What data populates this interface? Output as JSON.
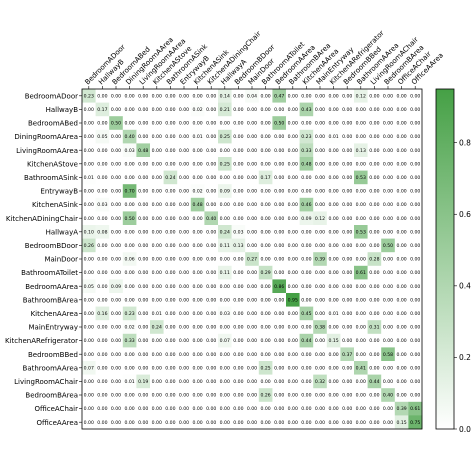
{
  "chart_data": {
    "type": "heatmap",
    "x_labels": [
      "BedroomADoor",
      "HallwayB",
      "BedroomABed",
      "DiningRoomAArea",
      "LivingRoomAArea",
      "KitchenAStove",
      "BathroomASink",
      "EntrywayB",
      "KitchenASink",
      "KitchenADiningChair",
      "HallwayA",
      "BedroomBDoor",
      "MainDoor",
      "BathroomAToilet",
      "BedroomAArea",
      "BathroomBArea",
      "KitchenAArea",
      "MainEntryway",
      "KitchenARefrigerator",
      "BedroomBBed",
      "BathroomAArea",
      "LivingRoomAChair",
      "BedroomBArea",
      "OfficeAChair",
      "OfficeAArea"
    ],
    "y_labels": [
      "BedroomADoor",
      "HallwayB",
      "BedroomABed",
      "DiningRoomAArea",
      "LivingRoomAArea",
      "KitchenAStove",
      "BathroomASink",
      "EntrywayB",
      "KitchenASink",
      "KitchenADiningChair",
      "HallwayA",
      "BedroomBDoor",
      "MainDoor",
      "BathroomAToilet",
      "BedroomAArea",
      "BathroomBArea",
      "KitchenAArea",
      "MainEntryway",
      "KitchenARefrigerator",
      "BedroomBBed",
      "BathroomAArea",
      "LivingRoomAChair",
      "BedroomBArea",
      "OfficeAChair",
      "OfficeAArea"
    ],
    "values": [
      [
        0.23,
        0.0,
        0.0,
        0.0,
        0.0,
        0.0,
        0.0,
        0.0,
        0.0,
        0.0,
        0.14,
        0.0,
        0.04,
        0.0,
        0.47,
        0.0,
        0.0,
        0.0,
        0.0,
        0.0,
        0.12,
        0.0,
        0.0,
        0.0,
        0.0
      ],
      [
        0.0,
        0.17,
        0.0,
        0.0,
        0.0,
        0.0,
        0.0,
        0.0,
        0.02,
        0.0,
        0.21,
        0.0,
        0.0,
        0.0,
        0.0,
        0.0,
        0.43,
        0.0,
        0.0,
        0.0,
        0.0,
        0.0,
        0.0,
        0.0,
        0.0
      ],
      [
        0.0,
        0.0,
        0.5,
        0.0,
        0.0,
        0.0,
        0.0,
        0.0,
        0.0,
        0.0,
        0.0,
        0.0,
        0.0,
        0.0,
        0.5,
        0.0,
        0.0,
        0.0,
        0.0,
        0.0,
        0.0,
        0.0,
        0.0,
        0.0,
        0.0
      ],
      [
        0.0,
        0.05,
        0.0,
        0.4,
        0.0,
        0.0,
        0.0,
        0.0,
        0.01,
        0.0,
        0.25,
        0.0,
        0.0,
        0.0,
        0.0,
        0.0,
        0.23,
        0.0,
        0.01,
        0.0,
        0.0,
        0.0,
        0.0,
        0.0,
        0.0
      ],
      [
        0.0,
        0.0,
        0.0,
        0.03,
        0.48,
        0.0,
        0.0,
        0.0,
        0.0,
        0.0,
        0.0,
        0.0,
        0.0,
        0.0,
        0.0,
        0.0,
        0.33,
        0.0,
        0.0,
        0.0,
        0.13,
        0.0,
        0.0,
        0.0,
        0.0
      ],
      [
        0.0,
        0.0,
        0.0,
        0.0,
        0.0,
        0.0,
        0.0,
        0.0,
        0.0,
        0.0,
        0.25,
        0.0,
        0.0,
        0.0,
        0.0,
        0.0,
        0.48,
        0.0,
        0.0,
        0.0,
        0.0,
        0.0,
        0.0,
        0.0,
        0.0
      ],
      [
        0.01,
        0.0,
        0.0,
        0.0,
        0.0,
        0.0,
        0.24,
        0.0,
        0.0,
        0.0,
        0.0,
        0.0,
        0.0,
        0.17,
        0.0,
        0.0,
        0.0,
        0.0,
        0.0,
        0.0,
        0.53,
        0.0,
        0.0,
        0.0,
        0.0
      ],
      [
        0.0,
        0.0,
        0.0,
        0.7,
        0.0,
        0.0,
        0.0,
        0.0,
        0.02,
        0.0,
        0.09,
        0.0,
        0.0,
        0.0,
        0.0,
        0.0,
        0.0,
        0.0,
        0.0,
        0.0,
        0.0,
        0.0,
        0.0,
        0.0,
        0.0
      ],
      [
        0.0,
        0.03,
        0.0,
        0.0,
        0.0,
        0.0,
        0.0,
        0.0,
        0.48,
        0.0,
        0.0,
        0.0,
        0.0,
        0.0,
        0.0,
        0.0,
        0.46,
        0.0,
        0.0,
        0.0,
        0.0,
        0.0,
        0.0,
        0.0,
        0.0
      ],
      [
        0.0,
        0.0,
        0.0,
        0.5,
        0.0,
        0.0,
        0.0,
        0.0,
        0.0,
        0.4,
        0.0,
        0.0,
        0.0,
        0.0,
        0.0,
        0.0,
        0.09,
        0.12,
        0.0,
        0.0,
        0.0,
        0.0,
        0.0,
        0.0,
        0.0
      ],
      [
        0.1,
        0.08,
        0.0,
        0.0,
        0.0,
        0.0,
        0.0,
        0.0,
        0.0,
        0.0,
        0.24,
        0.03,
        0.0,
        0.0,
        0.0,
        0.0,
        0.0,
        0.0,
        0.0,
        0.0,
        0.53,
        0.0,
        0.0,
        0.0,
        0.0
      ],
      [
        0.26,
        0.0,
        0.0,
        0.0,
        0.0,
        0.0,
        0.0,
        0.0,
        0.0,
        0.0,
        0.11,
        0.13,
        0.0,
        0.0,
        0.0,
        0.0,
        0.0,
        0.0,
        0.0,
        0.0,
        0.0,
        0.0,
        0.5,
        0.0,
        0.0
      ],
      [
        0.0,
        0.0,
        0.0,
        0.06,
        0.0,
        0.0,
        0.0,
        0.0,
        0.0,
        0.0,
        0.0,
        0.0,
        0.27,
        0.0,
        0.0,
        0.0,
        0.0,
        0.39,
        0.0,
        0.0,
        0.0,
        0.28,
        0.0,
        0.0,
        0.0
      ],
      [
        0.0,
        0.0,
        0.0,
        0.0,
        0.0,
        0.0,
        0.0,
        0.0,
        0.0,
        0.0,
        0.11,
        0.0,
        0.0,
        0.29,
        0.0,
        0.0,
        0.0,
        0.0,
        0.0,
        0.0,
        0.61,
        0.0,
        0.0,
        0.0,
        0.0
      ],
      [
        0.05,
        0.0,
        0.09,
        0.0,
        0.0,
        0.0,
        0.0,
        0.0,
        0.0,
        0.0,
        0.0,
        0.0,
        0.0,
        0.0,
        0.86,
        0.0,
        0.0,
        0.0,
        0.0,
        0.0,
        0.0,
        0.0,
        0.0,
        0.0,
        0.0
      ],
      [
        0.0,
        0.0,
        0.0,
        0.0,
        0.0,
        0.0,
        0.0,
        0.0,
        0.0,
        0.0,
        0.0,
        0.0,
        0.0,
        0.0,
        0.0,
        0.95,
        0.0,
        0.0,
        0.0,
        0.0,
        0.0,
        0.0,
        0.0,
        0.0,
        0.0
      ],
      [
        0.0,
        0.16,
        0.0,
        0.23,
        0.0,
        0.01,
        0.0,
        0.0,
        0.0,
        0.0,
        0.03,
        0.0,
        0.0,
        0.0,
        0.0,
        0.0,
        0.45,
        0.0,
        0.01,
        0.0,
        0.0,
        0.0,
        0.0,
        0.0,
        0.0
      ],
      [
        0.0,
        0.0,
        0.0,
        0.02,
        0.0,
        0.24,
        0.0,
        0.0,
        0.0,
        0.0,
        0.0,
        0.0,
        0.0,
        0.0,
        0.0,
        0.0,
        0.0,
        0.38,
        0.0,
        0.0,
        0.0,
        0.31,
        0.0,
        0.0,
        0.0
      ],
      [
        0.0,
        0.0,
        0.0,
        0.33,
        0.0,
        0.0,
        0.0,
        0.0,
        0.0,
        0.0,
        0.07,
        0.0,
        0.0,
        0.0,
        0.0,
        0.0,
        0.44,
        0.0,
        0.15,
        0.0,
        0.0,
        0.0,
        0.0,
        0.0,
        0.0
      ],
      [
        0.0,
        0.0,
        0.0,
        0.0,
        0.0,
        0.0,
        0.0,
        0.0,
        0.0,
        0.0,
        0.0,
        0.0,
        0.0,
        0.0,
        0.0,
        0.0,
        0.0,
        0.0,
        0.0,
        0.37,
        0.0,
        0.0,
        0.58,
        0.0,
        0.0
      ],
      [
        0.07,
        0.0,
        0.0,
        0.0,
        0.0,
        0.0,
        0.0,
        0.0,
        0.0,
        0.0,
        0.0,
        0.0,
        0.0,
        0.25,
        0.0,
        0.0,
        0.0,
        0.0,
        0.0,
        0.0,
        0.41,
        0.0,
        0.0,
        0.0,
        0.0
      ],
      [
        0.0,
        0.0,
        0.0,
        0.01,
        0.19,
        0.0,
        0.0,
        0.0,
        0.0,
        0.0,
        0.0,
        0.0,
        0.0,
        0.0,
        0.0,
        0.0,
        0.0,
        0.32,
        0.0,
        0.0,
        0.0,
        0.44,
        0.0,
        0.0,
        0.0
      ],
      [
        0.0,
        0.0,
        0.0,
        0.0,
        0.0,
        0.0,
        0.0,
        0.0,
        0.0,
        0.0,
        0.0,
        0.0,
        0.0,
        0.26,
        0.0,
        0.0,
        0.0,
        0.0,
        0.0,
        0.0,
        0.0,
        0.0,
        0.4,
        0.0,
        0.0
      ],
      [
        0.0,
        0.0,
        0.0,
        0.0,
        0.0,
        0.0,
        0.0,
        0.0,
        0.0,
        0.0,
        0.0,
        0.0,
        0.0,
        0.0,
        0.0,
        0.0,
        0.0,
        0.0,
        0.0,
        0.0,
        0.0,
        0.0,
        0.0,
        0.39,
        0.61
      ],
      [
        0.0,
        0.0,
        0.0,
        0.0,
        0.0,
        0.0,
        0.0,
        0.0,
        0.0,
        0.0,
        0.0,
        0.0,
        0.0,
        0.0,
        0.0,
        0.0,
        0.0,
        0.0,
        0.0,
        0.0,
        0.0,
        0.0,
        0.0,
        0.15,
        0.75
      ]
    ],
    "value_format": "2 decimals",
    "colormap": [
      "#ffffff",
      "#45a045"
    ],
    "vmin": 0.0,
    "vmax": 0.95,
    "colorbar_ticks": [
      "0.0",
      "0.2",
      "0.4",
      "0.6",
      "0.8"
    ],
    "colorbar_tick_values": [
      0.0,
      0.2,
      0.4,
      0.6,
      0.8
    ],
    "grid": false,
    "colorbar_placement": "right"
  }
}
